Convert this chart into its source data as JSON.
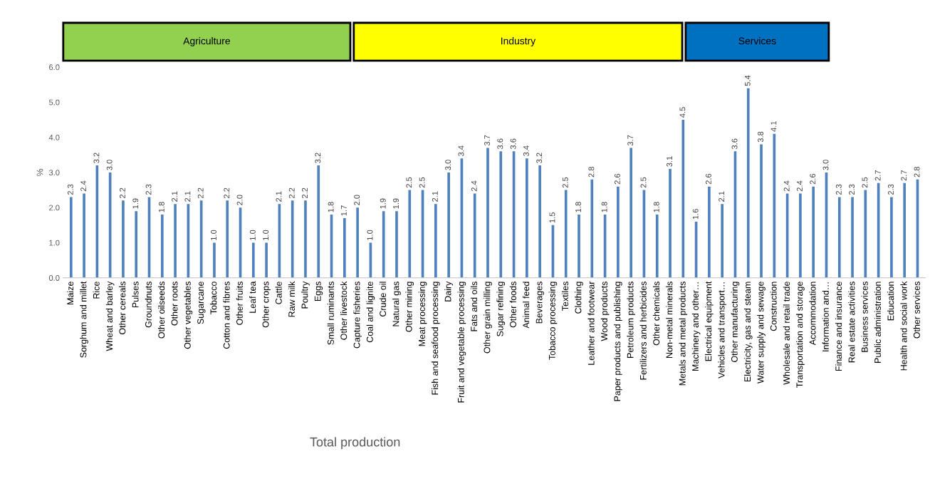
{
  "chart_data": {
    "type": "bar",
    "annotations": [
      "Total production",
      "Agriculture",
      "Industry",
      "Services"
    ],
    "ylabel": "%",
    "categories": [
      "Maize",
      "Sorghum and millet",
      "Rice",
      "Wheat and barley",
      "Other cereals",
      "Pulses",
      "Groundnuts",
      "Other oilseeds",
      "Other roots",
      "Other vegetables",
      "Sugarcane",
      "Tobacco",
      "Cotton and fibres",
      "Other fruits",
      "Leaf tea",
      "Other crops",
      "Cattle",
      "Raw milk",
      "Poultry",
      "Eggs",
      "Small ruminants",
      "Other livestock",
      "Capture fisheries",
      "Coal and lignite",
      "Crude oil",
      "Natural gas",
      "Other mining",
      "Meat processing",
      "Fish and seafood processing",
      "Dairy",
      "Fruit and vegetable processing",
      "Fats and oils",
      "Other grain milling",
      "Sugar refining",
      "Other foods",
      "Animal feed",
      "Beverages",
      "Tobacco processing",
      "Textiles",
      "Clothing",
      "Leather and footwear",
      "Wood products",
      "Paper products and publishing",
      "Petroleum products",
      "Fertilizers and herbicides",
      "Other chemicals",
      "Non-metal minerals",
      "Metals and metal products",
      "Machinery and other…",
      "Electrical equipment",
      "Vehicles and transport…",
      "Other manufacturing",
      "Electricity, gas and steam",
      "Water supply and sewage",
      "Construction",
      "Wholesale and retail trade",
      "Transportation and storage",
      "Accommodation",
      "Information and…",
      "Finance and insurance",
      "Real estate activities",
      "Business services",
      "Public administration",
      "Education",
      "Health and social work",
      "Other services"
    ],
    "values": [
      2.3,
      2.4,
      3.2,
      3.0,
      2.2,
      1.9,
      2.3,
      1.8,
      2.1,
      2.1,
      2.2,
      1.0,
      2.2,
      2.0,
      1.0,
      1.0,
      2.1,
      2.2,
      2.2,
      3.2,
      1.8,
      1.7,
      2.0,
      1.0,
      1.9,
      1.9,
      2.5,
      2.5,
      2.1,
      3.0,
      3.4,
      2.4,
      3.7,
      3.6,
      3.6,
      3.4,
      3.2,
      1.5,
      2.5,
      1.8,
      2.8,
      1.8,
      2.6,
      3.7,
      2.5,
      1.8,
      3.1,
      4.5,
      1.6,
      2.6,
      2.1,
      3.6,
      5.4,
      3.8,
      4.1,
      2.4,
      2.4,
      2.6,
      3.0,
      2.3,
      2.3,
      2.5,
      2.7,
      2.3,
      2.7,
      2.8
    ],
    "value_labels": [
      "2.3",
      "2.4",
      "3.2",
      "3.0",
      "2.2",
      "1.9",
      "2.3",
      "1.8",
      "2.1",
      "2.1",
      "2.2",
      "1.0",
      "2.2",
      "2.0",
      "1.0",
      "1.0",
      "2.1",
      "2.2",
      "2.2",
      "3.2",
      "1.8",
      "1.7",
      "2.0",
      "1.0",
      "1.9",
      "1.9",
      "2.5",
      "2.5",
      "2.1",
      "3.0",
      "3.4",
      "2.4",
      "3.7",
      "3.6",
      "3.6",
      "3.4",
      "3.2",
      "1.5",
      "2.5",
      "1.8",
      "2.8",
      "1.8",
      "2.6",
      "3.7",
      "2.5",
      "1.8",
      "3.1",
      "4.5",
      "1.6",
      "2.6",
      "2.1",
      "3.6",
      "5.4",
      "3.8",
      "4.1",
      "2.4",
      "2.4",
      "2.6",
      "3.0",
      "2.3",
      "2.3",
      "2.5",
      "2.7",
      "2.3",
      "2.7",
      "2.8"
    ],
    "color": "#4f81bd",
    "grid": false,
    "ylim": [
      0,
      6
    ],
    "yticks": [
      {
        "value": 0,
        "label": "0.0"
      },
      {
        "value": 1,
        "label": "1.0"
      },
      {
        "value": 2,
        "label": "2.0"
      },
      {
        "value": 3,
        "label": "3.0"
      },
      {
        "value": 4,
        "label": "4.0"
      },
      {
        "value": 5,
        "label": "5.0"
      },
      {
        "value": 6,
        "label": "6.0"
      }
    ]
  }
}
